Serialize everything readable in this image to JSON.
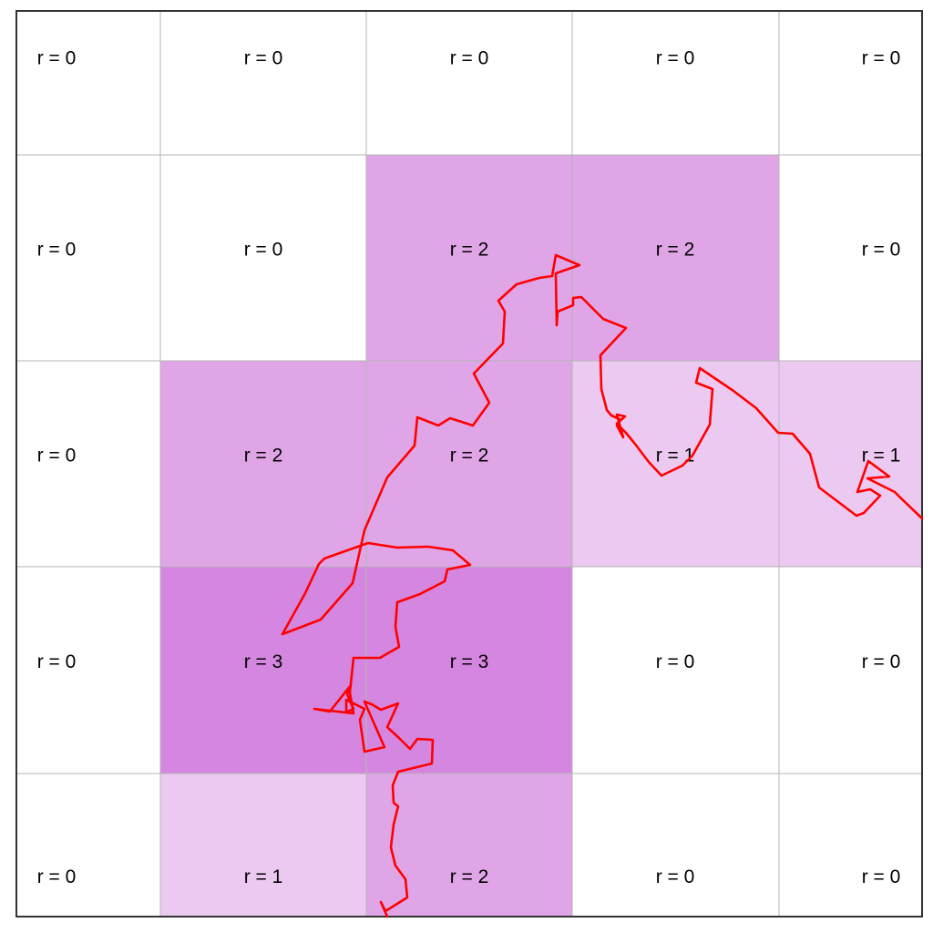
{
  "grid": {
    "rows": [
      [
        "r = 0",
        "r = 0",
        "r = 0",
        "r = 0",
        "r = 0"
      ],
      [
        "r = 0",
        "r = 0",
        "r = 2",
        "r = 2",
        "r = 0"
      ],
      [
        "r = 0",
        "r = 2",
        "r = 2",
        "r = 1",
        "r = 1"
      ],
      [
        "r = 0",
        "r = 3",
        "r = 3",
        "r = 0",
        "r = 0"
      ],
      [
        "r = 0",
        "r = 1",
        "r = 2",
        "r = 0",
        "r = 0"
      ]
    ],
    "levels": [
      [
        0,
        0,
        0,
        0,
        0
      ],
      [
        0,
        0,
        2,
        2,
        0
      ],
      [
        0,
        2,
        2,
        1,
        1
      ],
      [
        0,
        3,
        3,
        0,
        0
      ],
      [
        0,
        1,
        2,
        0,
        0
      ]
    ],
    "level_colors": {
      "0": "#ffffff",
      "1": "#ecc9f0",
      "2": "#dfa5e7",
      "3": "#d586e0"
    },
    "gridline_color": "#b5b5b5",
    "frame_color": "#333333"
  },
  "path": {
    "color": "#ff0000"
  }
}
